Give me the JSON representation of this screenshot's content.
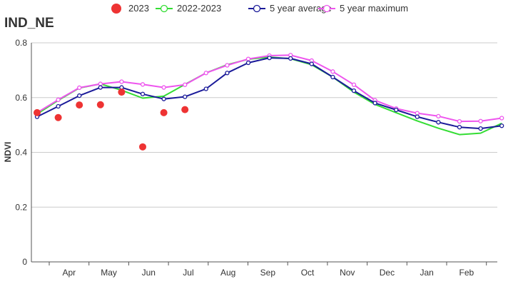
{
  "chart_data": {
    "type": "line",
    "title": "IND_NE",
    "xlabel": "",
    "ylabel": "NDVI",
    "ylim": [
      0,
      0.8
    ],
    "yticks": [
      0,
      0.2,
      0.4,
      0.6,
      0.8
    ],
    "ytick_labels": [
      "0",
      "0.2",
      "0.4",
      "0.6",
      "0.8"
    ],
    "grid": true,
    "legend_placement": "top-center",
    "month_labels": [
      "Apr",
      "May",
      "Jun",
      "Jul",
      "Aug",
      "Sep",
      "Oct",
      "Nov",
      "Dec",
      "Jan",
      "Feb"
    ],
    "x": [
      1,
      2,
      3,
      4,
      5,
      6,
      7,
      8,
      9,
      10,
      11,
      12,
      13,
      14,
      15,
      16,
      17,
      18,
      19,
      20,
      21,
      22,
      23
    ],
    "series": [
      {
        "name": "2023",
        "style": "dots",
        "color": "#ee3333",
        "values": [
          0.545,
          0.527,
          0.573,
          0.574,
          0.62,
          0.42,
          0.545,
          0.556,
          null,
          null,
          null,
          null,
          null,
          null,
          null,
          null,
          null,
          null,
          null,
          null,
          null,
          null,
          null
        ]
      },
      {
        "name": "2022-2023",
        "style": "line",
        "color": "#33dd33",
        "values": [
          0.54,
          0.59,
          0.635,
          0.65,
          0.627,
          0.598,
          0.605,
          0.648,
          0.69,
          0.72,
          0.74,
          0.748,
          0.742,
          0.72,
          0.675,
          0.62,
          0.575,
          0.545,
          0.515,
          0.488,
          0.465,
          0.47,
          0.506
        ]
      },
      {
        "name": "5 year average",
        "style": "line-markers",
        "color": "#1a1a99",
        "values": [
          0.53,
          0.568,
          0.607,
          0.637,
          0.637,
          0.613,
          0.595,
          0.603,
          0.632,
          0.69,
          0.727,
          0.745,
          0.743,
          0.723,
          0.675,
          0.625,
          0.58,
          0.555,
          0.53,
          0.51,
          0.492,
          0.487,
          0.497
        ]
      },
      {
        "name": "5 year maximum",
        "style": "line-markers",
        "color": "#ee55ee",
        "values": [
          0.545,
          0.592,
          0.636,
          0.65,
          0.658,
          0.648,
          0.637,
          0.647,
          0.69,
          0.718,
          0.741,
          0.753,
          0.755,
          0.735,
          0.695,
          0.647,
          0.59,
          0.56,
          0.543,
          0.532,
          0.513,
          0.514,
          0.525
        ]
      }
    ]
  }
}
